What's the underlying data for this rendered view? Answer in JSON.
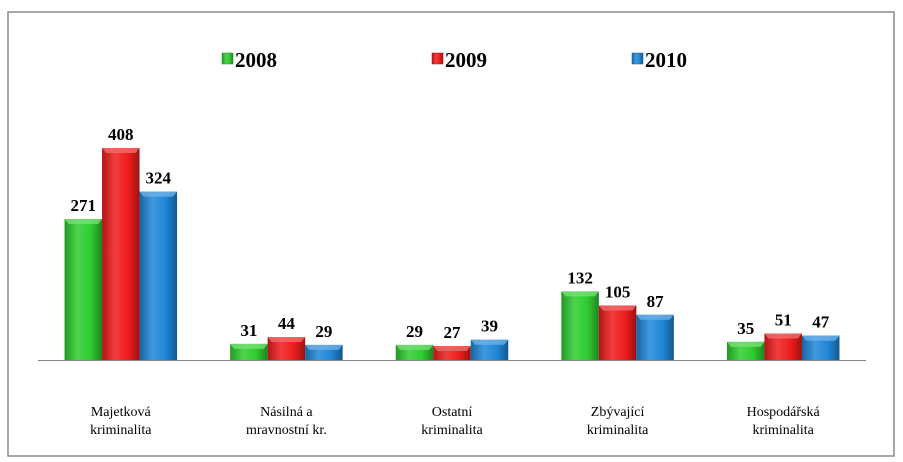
{
  "chart_data": {
    "type": "bar",
    "categories": [
      "Majetková\nkriminalita",
      "Násilná a\nmravnostní kr.",
      "Ostatní\nkriminalita",
      "Zbývající\nkriminalita",
      "Hospodářská\nkriminalita"
    ],
    "series": [
      {
        "name": "2008",
        "color": "#2ecc2e",
        "values": [
          271,
          31,
          29,
          132,
          35
        ]
      },
      {
        "name": "2009",
        "color": "#ee1c1c",
        "values": [
          408,
          44,
          27,
          105,
          51
        ]
      },
      {
        "name": "2010",
        "color": "#1f86d8",
        "values": [
          324,
          29,
          39,
          87,
          47
        ]
      }
    ],
    "legend": "top"
  }
}
